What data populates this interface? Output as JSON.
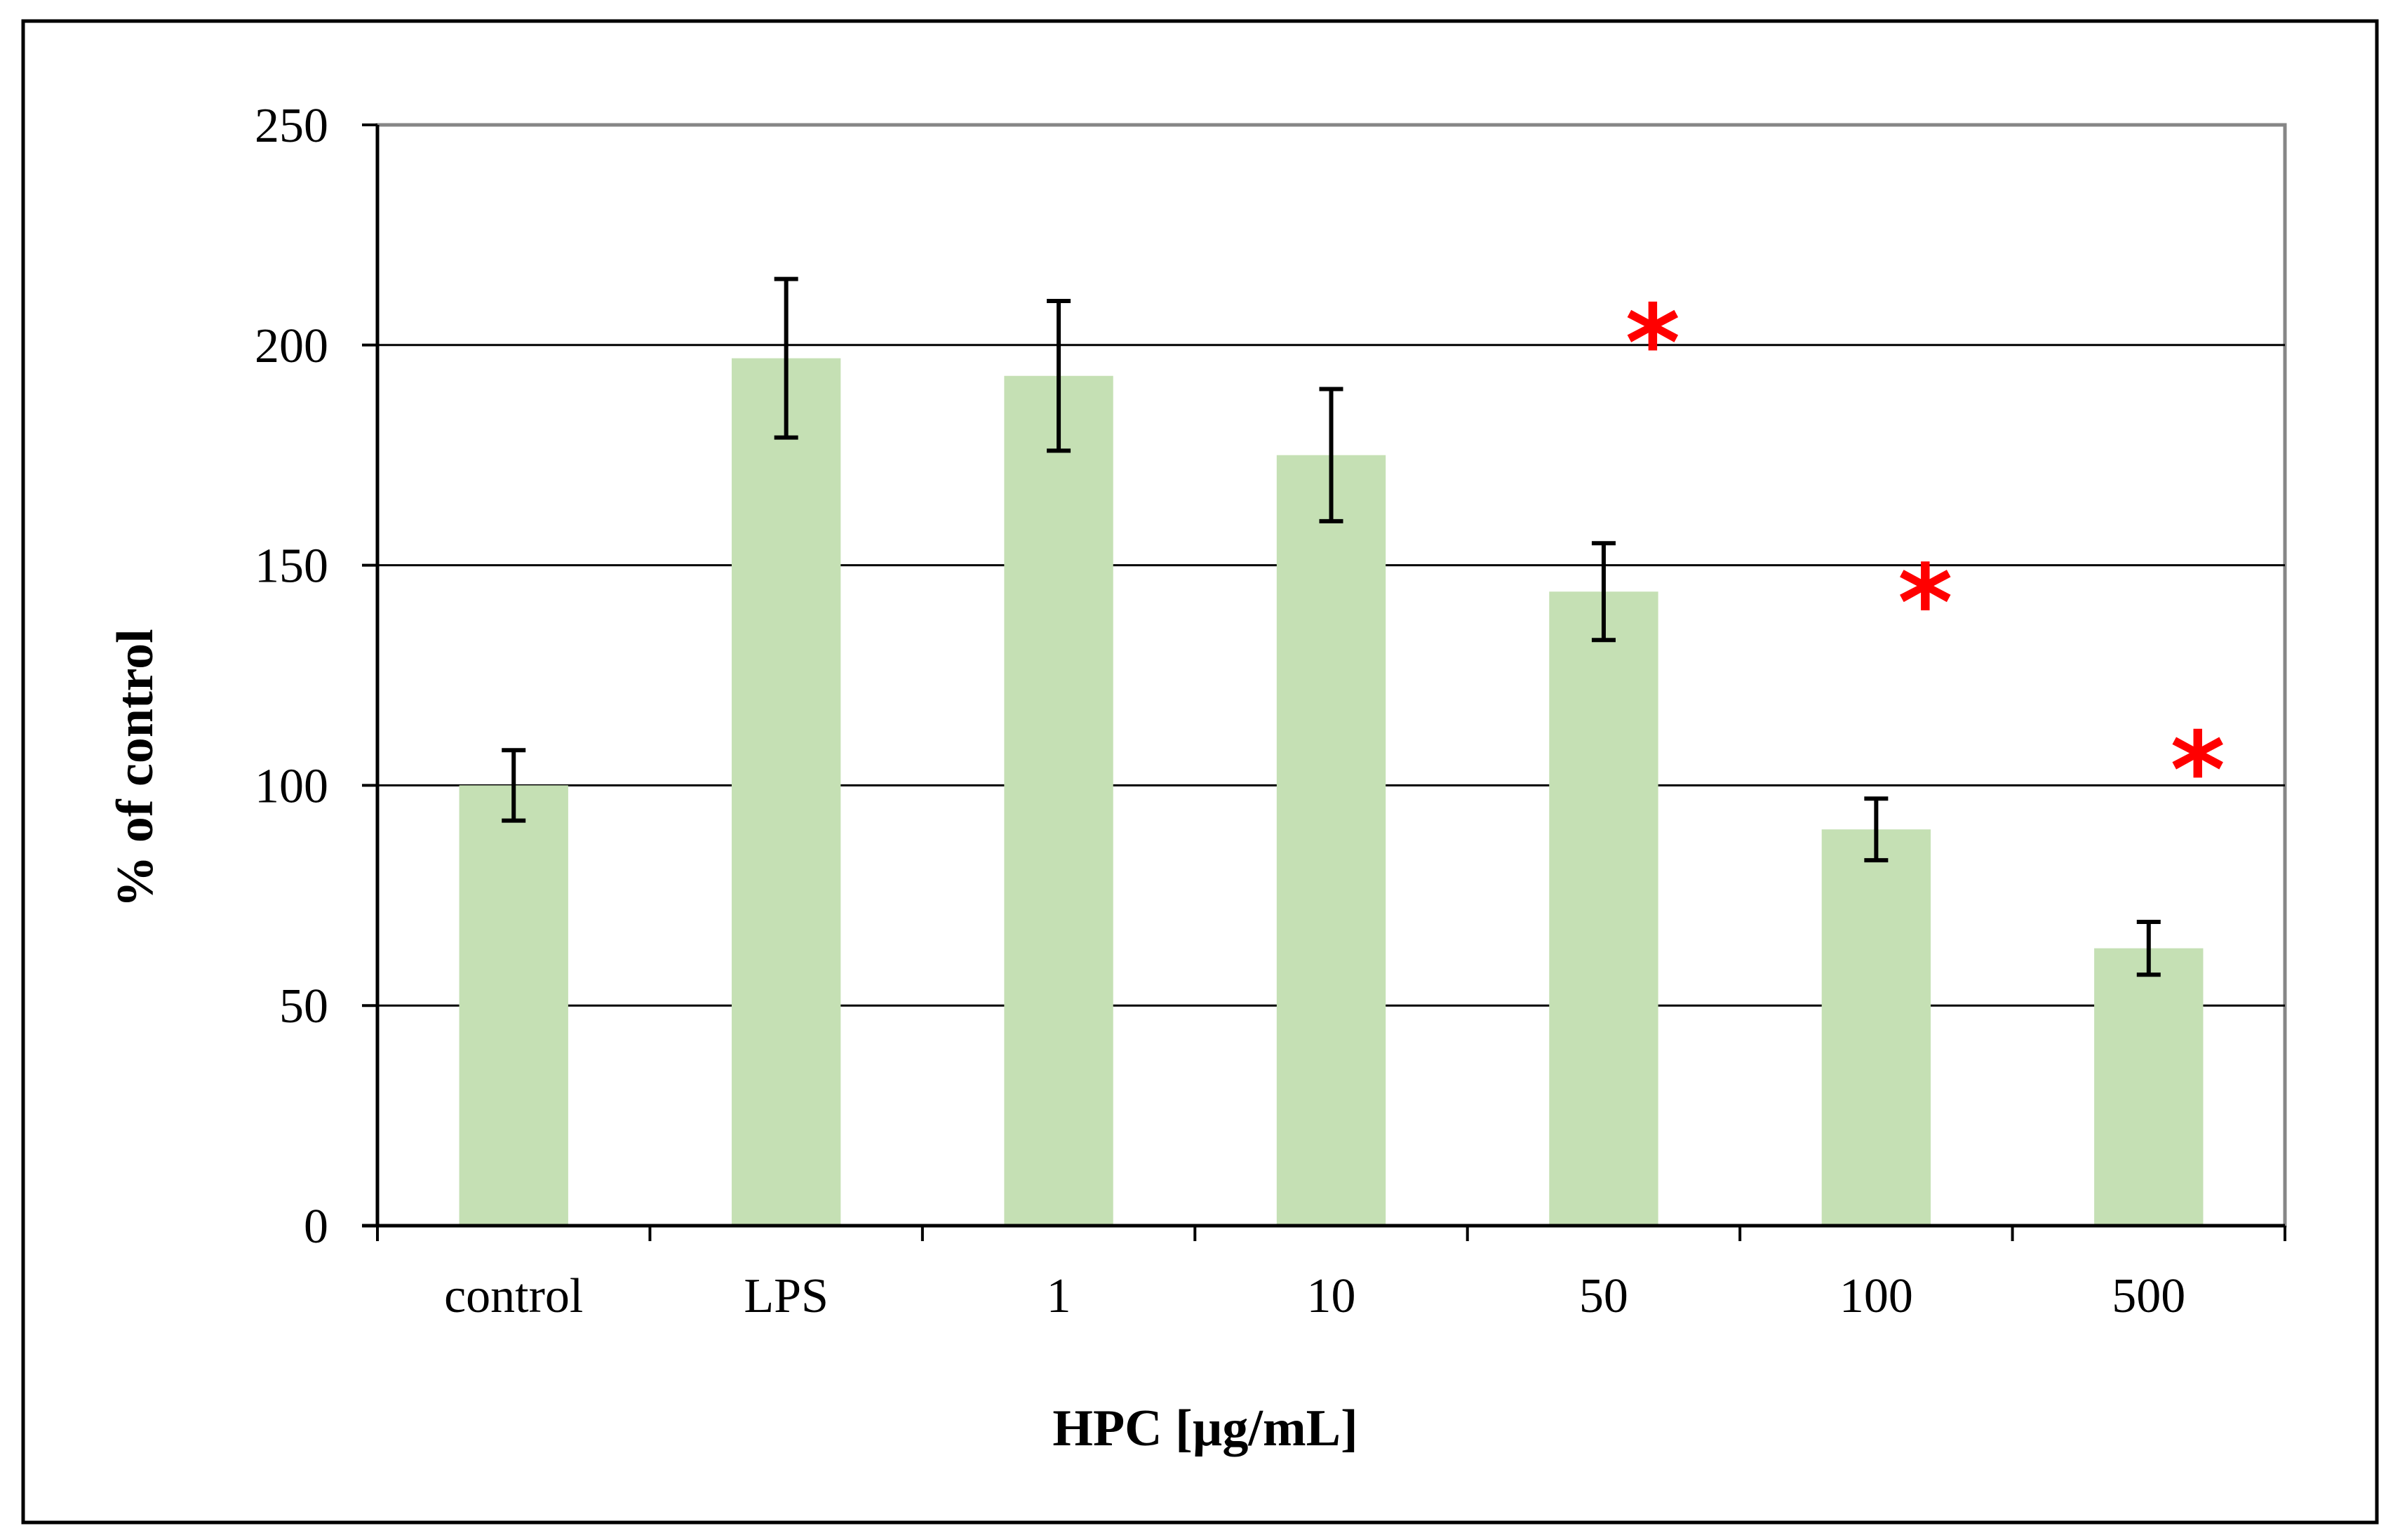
{
  "chart_data": {
    "type": "bar",
    "title": "",
    "xlabel": "HPC [µg/mL]",
    "ylabel": "% of control",
    "categories": [
      "control",
      "LPS",
      "1",
      "10",
      "50",
      "100",
      "500"
    ],
    "values": [
      100,
      197,
      193,
      175,
      144,
      90,
      63
    ],
    "error": [
      8,
      18,
      17,
      15,
      11,
      7,
      6
    ],
    "significant": [
      false,
      false,
      false,
      false,
      true,
      true,
      true
    ],
    "significance_marker": "*",
    "significance_marker_values": [
      202,
      143,
      105
    ],
    "ylim": [
      0,
      250
    ],
    "yticks": [
      0,
      50,
      100,
      150,
      200,
      250
    ],
    "grid": true,
    "colors": {
      "bar": "#c5e0b4",
      "error_bar": "#000000",
      "gridline": "#000000",
      "marker": "#ff0000",
      "axis": "#000000",
      "plot_border": "#868686",
      "frame": "#000000"
    }
  }
}
